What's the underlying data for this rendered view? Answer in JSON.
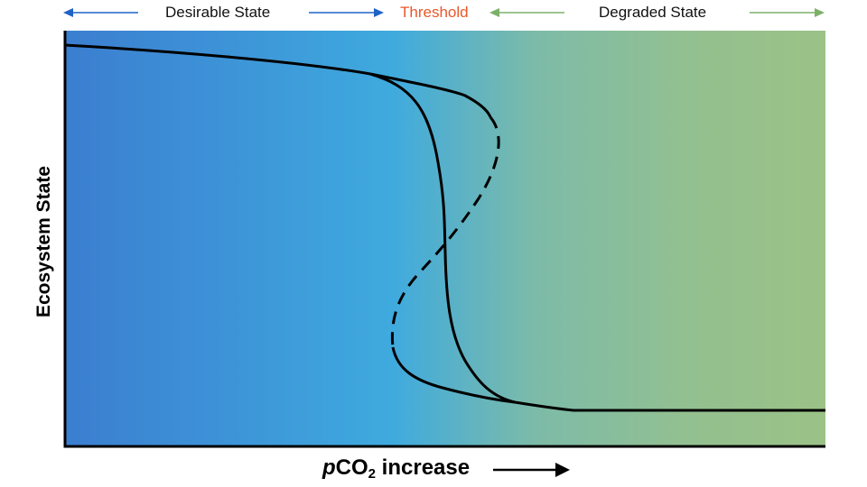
{
  "header": {
    "desirable_label": "Desirable State",
    "threshold_label": "Threshold",
    "degraded_label": "Degraded State"
  },
  "axes": {
    "y_label": "Ecosystem State",
    "x_label_prefix": "p",
    "x_label_main": "CO",
    "x_label_subscript": "2",
    "x_label_suffix": " increase"
  },
  "colors": {
    "desirable_blue": "#3b7ed0",
    "mid_blue": "#3fa9dd",
    "degraded_green": "#9bc287",
    "threshold_orange": "#e8582a",
    "arrow_blue": "#1f63c6",
    "arrow_green": "#7cb06a"
  }
}
